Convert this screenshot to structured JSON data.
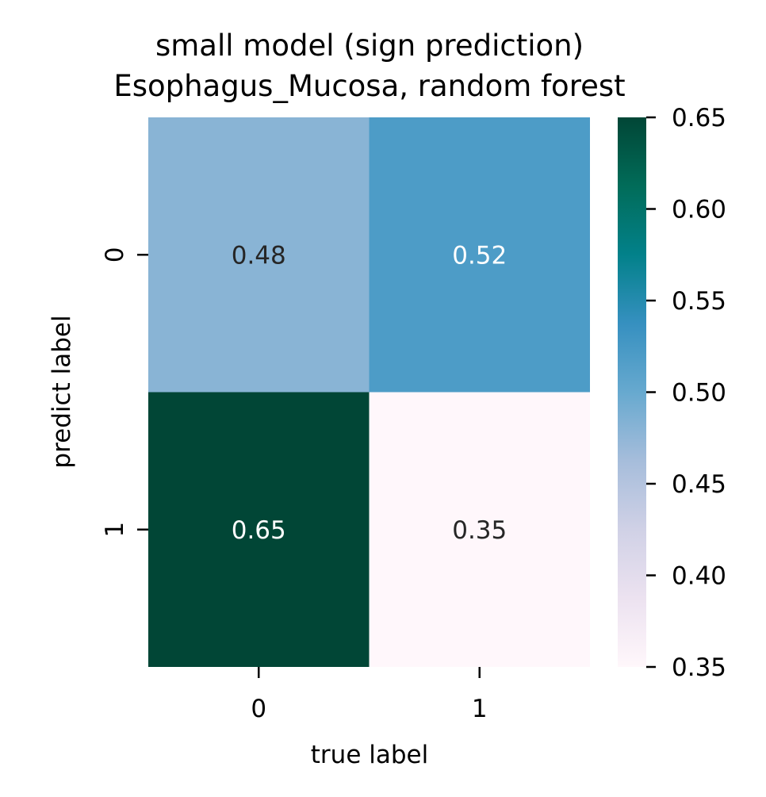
{
  "chart_data": {
    "type": "heatmap",
    "title": "small model (sign prediction)",
    "subtitle": "Esophagus_Mucosa, random forest",
    "xlabel": "true label",
    "ylabel": "predict label",
    "x_categories": [
      "0",
      "1"
    ],
    "y_categories": [
      "0",
      "1"
    ],
    "values": [
      [
        0.48,
        0.52
      ],
      [
        0.65,
        0.35
      ]
    ],
    "value_labels": [
      [
        "0.48",
        "0.52"
      ],
      [
        "0.65",
        "0.35"
      ]
    ],
    "colorbar": {
      "min": 0.35,
      "max": 0.65,
      "ticks": [
        0.35,
        0.4,
        0.45,
        0.5,
        0.55,
        0.6,
        0.65
      ],
      "tick_labels": [
        "0.35",
        "0.40",
        "0.45",
        "0.50",
        "0.55",
        "0.60",
        "0.65"
      ]
    },
    "colormap": "PuBuGn",
    "colormap_stops": [
      {
        "t": 0.0,
        "color": "#fff7fb"
      },
      {
        "t": 0.125,
        "color": "#ece2f0"
      },
      {
        "t": 0.25,
        "color": "#d0d1e6"
      },
      {
        "t": 0.375,
        "color": "#a6bddb"
      },
      {
        "t": 0.5,
        "color": "#67a9cf"
      },
      {
        "t": 0.625,
        "color": "#3690c0"
      },
      {
        "t": 0.75,
        "color": "#02818a"
      },
      {
        "t": 0.875,
        "color": "#016c59"
      },
      {
        "t": 1.0,
        "color": "#014636"
      }
    ],
    "annotation_dark_color": "#262626",
    "annotation_light_color": "#ffffff"
  }
}
